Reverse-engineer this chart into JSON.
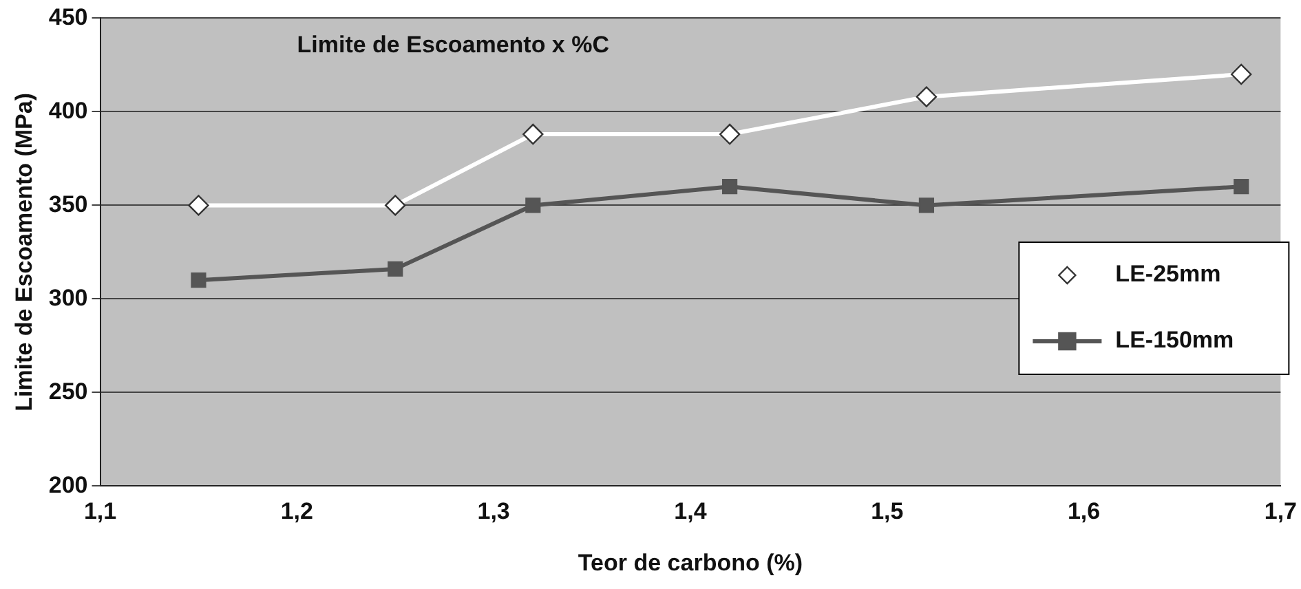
{
  "chart_data": {
    "type": "line",
    "title": "Limite de Escoamento x %C",
    "xlabel": "Teor de carbono (%)",
    "ylabel": "Limite de Escoamento (MPa)",
    "x": [
      1.15,
      1.25,
      1.32,
      1.42,
      1.52,
      1.68
    ],
    "series": [
      {
        "name": "LE-25mm",
        "color": "#ffffff",
        "marker": "diamond",
        "values": [
          350,
          350,
          388,
          388,
          408,
          420
        ]
      },
      {
        "name": "LE-150mm",
        "color": "#555555",
        "marker": "square",
        "values": [
          310,
          316,
          350,
          360,
          350,
          360
        ]
      }
    ],
    "xlim": [
      1.1,
      1.7
    ],
    "xticks": [
      {
        "value": 1.1,
        "label": "1,1"
      },
      {
        "value": 1.2,
        "label": "1,2"
      },
      {
        "value": 1.3,
        "label": "1,3"
      },
      {
        "value": 1.4,
        "label": "1,4"
      },
      {
        "value": 1.5,
        "label": "1,5"
      },
      {
        "value": 1.6,
        "label": "1,6"
      },
      {
        "value": 1.7,
        "label": "1,7"
      }
    ],
    "ylim": [
      200,
      450
    ],
    "yticks": [
      200,
      250,
      300,
      350,
      400,
      450
    ],
    "grid": "y",
    "legend": "right",
    "line_style": "solid"
  }
}
